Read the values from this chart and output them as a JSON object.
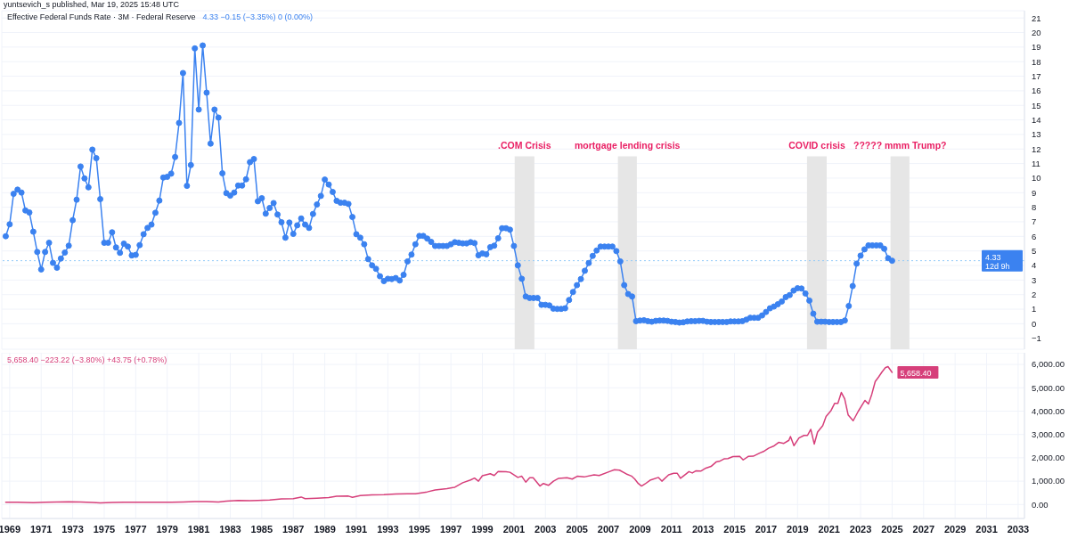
{
  "chart_data": [
    {
      "type": "line",
      "title": "Effective Federal Funds Rate · 3M · Federal Reserve",
      "subtitle": "4.33  −0.15 (−3.35%)  0 (0.00%)",
      "annotations": [
        "yuntsevich_s published, Mar 19, 2025 15:48 UTC"
      ],
      "x": [
        1968.75,
        1969,
        1969.25,
        1969.5,
        1969.75,
        1970,
        1970.25,
        1970.5,
        1970.75,
        1971,
        1971.25,
        1971.5,
        1971.75,
        1972,
        1972.25,
        1972.5,
        1972.75,
        1973,
        1973.25,
        1973.5,
        1973.75,
        1974,
        1974.25,
        1974.5,
        1974.75,
        1975,
        1975.25,
        1975.5,
        1975.75,
        1976,
        1976.25,
        1976.5,
        1976.75,
        1977,
        1977.25,
        1977.5,
        1977.75,
        1978,
        1978.25,
        1978.5,
        1978.75,
        1979,
        1979.25,
        1979.5,
        1979.75,
        1980,
        1980.25,
        1980.5,
        1980.75,
        1981,
        1981.25,
        1981.5,
        1981.75,
        1982,
        1982.25,
        1982.5,
        1982.75,
        1983,
        1983.25,
        1983.5,
        1983.75,
        1984,
        1984.25,
        1984.5,
        1984.75,
        1985,
        1985.25,
        1985.5,
        1985.75,
        1986,
        1986.25,
        1986.5,
        1986.75,
        1987,
        1987.25,
        1987.5,
        1987.75,
        1988,
        1988.25,
        1988.5,
        1988.75,
        1989,
        1989.25,
        1989.5,
        1989.75,
        1990,
        1990.25,
        1990.5,
        1990.75,
        1991,
        1991.25,
        1991.5,
        1991.75,
        1992,
        1992.25,
        1992.5,
        1992.75,
        1993,
        1993.25,
        1993.5,
        1993.75,
        1994,
        1994.25,
        1994.5,
        1994.75,
        1995,
        1995.25,
        1995.5,
        1995.75,
        1996,
        1996.25,
        1996.5,
        1996.75,
        1997,
        1997.25,
        1997.5,
        1997.75,
        1998,
        1998.25,
        1998.5,
        1998.75,
        1999,
        1999.25,
        1999.5,
        1999.75,
        2000,
        2000.25,
        2000.5,
        2000.75,
        2001,
        2001.25,
        2001.5,
        2001.75,
        2002,
        2002.25,
        2002.5,
        2002.75,
        2003,
        2003.25,
        2003.5,
        2003.75,
        2004,
        2004.25,
        2004.5,
        2004.75,
        2005,
        2005.25,
        2005.5,
        2005.75,
        2006,
        2006.25,
        2006.5,
        2006.75,
        2007,
        2007.25,
        2007.5,
        2007.75,
        2008,
        2008.25,
        2008.5,
        2008.75,
        2009,
        2009.25,
        2009.5,
        2009.75,
        2010,
        2010.25,
        2010.5,
        2010.75,
        2011,
        2011.25,
        2011.5,
        2011.75,
        2012,
        2012.25,
        2012.5,
        2012.75,
        2013,
        2013.25,
        2013.5,
        2013.75,
        2014,
        2014.25,
        2014.5,
        2014.75,
        2015,
        2015.25,
        2015.5,
        2015.75,
        2016,
        2016.25,
        2016.5,
        2016.75,
        2017,
        2017.25,
        2017.5,
        2017.75,
        2018,
        2018.25,
        2018.5,
        2018.75,
        2019,
        2019.25,
        2019.5,
        2019.75,
        2020,
        2020.25,
        2020.5,
        2020.75,
        2021,
        2021.25,
        2021.5,
        2021.75,
        2022,
        2022.25,
        2022.5,
        2022.75,
        2023,
        2023.25,
        2023.5,
        2023.75,
        2024,
        2024.25,
        2024.5,
        2024.75,
        2025
      ],
      "series": [
        {
          "color": "#3b82f0",
          "values": [
            6.01,
            6.83,
            8.92,
            9.21,
            9.01,
            7.78,
            7.64,
            6.32,
            4.93,
            3.73,
            4.93,
            5.56,
            4.18,
            3.85,
            4.48,
            4.89,
            5.36,
            7.11,
            8.52,
            10.8,
            9.98,
            9.37,
            11.96,
            11.37,
            8.56,
            5.56,
            5.56,
            6.28,
            5.24,
            4.87,
            5.5,
            5.3,
            4.69,
            4.73,
            5.4,
            6.15,
            6.58,
            6.81,
            7.62,
            8.46,
            10.04,
            10.09,
            10.31,
            11.45,
            13.79,
            17.22,
            9.47,
            10.9,
            18.91,
            14.71,
            19.11,
            15.87,
            12.37,
            14.71,
            14.16,
            10.33,
            8.97,
            8.8,
            9.01,
            9.49,
            9.49,
            9.92,
            11.1,
            11.31,
            8.41,
            8.62,
            7.56,
            7.95,
            8.29,
            7.5,
            6.97,
            5.91,
            6.95,
            6.17,
            6.76,
            7.23,
            6.81,
            6.58,
            7.54,
            8.19,
            8.78,
            9.9,
            9.56,
            9.05,
            8.44,
            8.31,
            8.31,
            8.23,
            7.33,
            6.15,
            5.91,
            5.46,
            4.44,
            4.01,
            3.77,
            3.26,
            2.93,
            3.09,
            3.07,
            3.14,
            2.97,
            3.36,
            4.28,
            4.75,
            5.46,
            6.03,
            6.03,
            5.85,
            5.62,
            5.34,
            5.34,
            5.34,
            5.34,
            5.46,
            5.6,
            5.56,
            5.52,
            5.52,
            5.6,
            5.54,
            4.7,
            4.83,
            4.77,
            5.26,
            5.36,
            5.87,
            6.56,
            6.56,
            6.46,
            5.34,
            4.01,
            3.09,
            1.87,
            1.77,
            1.77,
            1.77,
            1.3,
            1.3,
            1.26,
            1.04,
            1.02,
            1.02,
            1.06,
            1.63,
            2.18,
            2.65,
            3.07,
            3.64,
            4.17,
            4.66,
            5.03,
            5.3,
            5.3,
            5.3,
            5.3,
            4.99,
            4.28,
            2.65,
            2.04,
            1.87,
            0.18,
            0.22,
            0.24,
            0.18,
            0.14,
            0.2,
            0.22,
            0.22,
            0.2,
            0.14,
            0.12,
            0.08,
            0.1,
            0.16,
            0.18,
            0.18,
            0.2,
            0.2,
            0.14,
            0.12,
            0.12,
            0.12,
            0.12,
            0.12,
            0.16,
            0.16,
            0.16,
            0.18,
            0.28,
            0.41,
            0.41,
            0.41,
            0.57,
            0.81,
            1.06,
            1.18,
            1.34,
            1.53,
            1.83,
            1.97,
            2.28,
            2.44,
            2.42,
            2.08,
            1.59,
            0.69,
            0.14,
            0.14,
            0.14,
            0.12,
            0.12,
            0.12,
            0.12,
            0.22,
            1.22,
            2.59,
            4.13,
            4.68,
            5.11,
            5.38,
            5.38,
            5.38,
            5.38,
            5.15,
            4.5,
            4.33
          ]
        }
      ],
      "marker": "circle",
      "xlim": [
        1968.5,
        2033.4
      ],
      "xticks": [
        1969,
        1971,
        1973,
        1975,
        1977,
        1979,
        1981,
        1983,
        1985,
        1987,
        1989,
        1991,
        1993,
        1995,
        1997,
        1999,
        2001,
        2003,
        2005,
        2007,
        2009,
        2011,
        2013,
        2015,
        2017,
        2019,
        2021,
        2023,
        2025,
        2027,
        2029,
        2031,
        2033
      ],
      "ylim": [
        -1.75,
        21.5
      ],
      "yticks": [
        {
          "value": -1,
          "label": "−1"
        },
        0,
        1,
        2,
        3,
        4,
        5,
        6,
        7,
        8,
        9,
        10,
        11,
        12,
        13,
        14,
        15,
        16,
        17,
        18,
        19,
        20,
        21
      ],
      "ref_lines": [
        {
          "axis": "y",
          "value": 4.33,
          "label": "4.33\n12d 9h",
          "color": "#90caf9",
          "line_style": "dotted"
        }
      ],
      "bands": [
        {
          "axis": "x",
          "from": 2001.05,
          "to": 2002.3,
          "label": ".COM Crisis",
          "color": "#e6e6e6"
        },
        {
          "axis": "x",
          "from": 2007.6,
          "to": 2008.8,
          "label": "mortgage lending crisis",
          "color": "#e6e6e6"
        },
        {
          "axis": "x",
          "from": 2019.6,
          "to": 2020.85,
          "label": "COVID crisis",
          "color": "#e6e6e6"
        },
        {
          "axis": "x",
          "from": 2024.9,
          "to": 2026.1,
          "label": "????? mmm Trump?",
          "color": "#e6e6e6"
        }
      ],
      "grid": true,
      "tick_labels": "y"
    },
    {
      "type": "line",
      "subtitle": "5,658.40  −223.22 (−3.80%)  +43.75 (+0.78%)",
      "series": [
        {
          "color": "#d63f7a",
          "x": [
            1968.75,
            1969.5,
            1970.5,
            1971.25,
            1972,
            1972.75,
            1973.5,
            1974.25,
            1974.75,
            1975.5,
            1976.25,
            1977,
            1977.75,
            1978.5,
            1979.25,
            1980,
            1980.75,
            1981.5,
            1982.25,
            1982.75,
            1983.5,
            1984.25,
            1984.75,
            1985.5,
            1986.25,
            1987,
            1987.5,
            1987.75,
            1988.5,
            1989.25,
            1989.75,
            1990.5,
            1990.75,
            1991.25,
            1992,
            1992.75,
            1993.5,
            1994.25,
            1994.75,
            1995.5,
            1996,
            1996.75,
            1997.25,
            1997.75,
            1998.25,
            1998.5,
            1998.75,
            1999,
            1999.5,
            1999.75,
            2000,
            2000.5,
            2000.75,
            2001.25,
            2001.5,
            2001.75,
            2002,
            2002.22,
            2002.65,
            2002.87,
            2003.19,
            2003.51,
            2003.84,
            2004.37,
            2004.7,
            2005.02,
            2005.45,
            2006.09,
            2006.41,
            2007.06,
            2007.38,
            2007.7,
            2008.13,
            2008.46,
            2008.67,
            2008.89,
            2009.1,
            2009.32,
            2009.64,
            2010.17,
            2010.39,
            2010.82,
            2011.14,
            2011.36,
            2011.57,
            2011.79,
            2012.11,
            2012.32,
            2012.54,
            2012.86,
            2013.18,
            2013.51,
            2013.83,
            2014.04,
            2014.36,
            2014.58,
            2014.9,
            2015.33,
            2015.55,
            2015.87,
            2016.19,
            2016.62,
            2016.84,
            2017.16,
            2017.48,
            2017.8,
            2018.13,
            2018.45,
            2018.55,
            2018.77,
            2019.09,
            2019.41,
            2019.63,
            2019.84,
            2020.06,
            2020.27,
            2020.6,
            2020.81,
            2021.13,
            2021.35,
            2021.56,
            2021.78,
            2021.99,
            2022.21,
            2022.53,
            2022.85,
            2023.28,
            2023.5,
            2023.71,
            2023.93,
            2024.14,
            2024.36,
            2024.57,
            2024.74,
            2025
          ],
          "values": [
            100,
            100,
            80,
            100,
            110,
            120,
            110,
            90,
            70,
            90,
            100,
            100,
            100,
            100,
            100,
            110,
            130,
            130,
            110,
            140,
            170,
            160,
            170,
            190,
            240,
            250,
            320,
            250,
            270,
            300,
            350,
            360,
            310,
            380,
            410,
            420,
            450,
            460,
            460,
            540,
            620,
            680,
            740,
            930,
            1050,
            1130,
            1000,
            1230,
            1320,
            1240,
            1410,
            1400,
            1380,
            1160,
            1210,
            960,
            1150,
            1150,
            790,
            900,
            820,
            1000,
            1120,
            1150,
            1090,
            1210,
            1180,
            1270,
            1240,
            1410,
            1490,
            1470,
            1310,
            1220,
            1090,
            900,
            790,
            880,
            1040,
            1160,
            1000,
            1270,
            1340,
            1340,
            1120,
            1240,
            1410,
            1350,
            1440,
            1430,
            1560,
            1630,
            1820,
            1850,
            1960,
            1970,
            2050,
            2060,
            1910,
            2060,
            2070,
            2210,
            2270,
            2410,
            2500,
            2660,
            2620,
            2750,
            2910,
            2520,
            2850,
            2960,
            2960,
            3220,
            2590,
            3100,
            3380,
            3770,
            4030,
            4330,
            4330,
            4800,
            4530,
            3840,
            3590,
            3990,
            4460,
            4310,
            4720,
            5270,
            5460,
            5680,
            5860,
            5910,
            5658.4
          ],
          "value_labels": [
            null,
            null,
            null,
            null,
            null,
            null,
            null,
            null,
            null,
            null,
            null,
            null,
            null,
            null,
            null,
            null,
            null,
            null,
            null,
            null,
            null,
            null,
            null,
            null,
            null,
            null,
            null,
            null,
            null,
            null,
            null,
            null,
            null,
            null,
            null,
            null,
            null,
            null,
            null,
            null,
            null,
            null,
            null,
            null,
            null,
            null,
            null,
            null,
            null,
            null,
            null,
            null,
            null,
            null,
            null,
            null,
            null,
            null,
            null,
            null,
            null,
            null,
            null,
            null,
            null,
            null,
            null,
            null,
            null,
            null,
            null,
            null,
            null,
            null,
            null,
            null,
            null,
            null,
            null,
            null,
            null,
            null,
            null,
            null,
            null,
            null,
            null,
            null,
            null,
            null,
            null,
            null,
            null,
            null,
            null,
            null,
            null,
            null,
            null,
            null,
            null,
            null,
            null,
            null,
            null,
            null,
            null,
            null,
            null,
            null,
            null,
            null,
            null,
            null,
            null,
            null,
            null,
            null,
            null,
            null,
            null,
            null,
            null,
            null,
            null,
            null,
            null,
            null,
            null,
            null,
            null,
            null,
            null,
            null,
            "5,658.40"
          ]
        }
      ],
      "xlim": [
        1968.5,
        2033.4
      ],
      "xticks": [
        1969,
        1971,
        1973,
        1975,
        1977,
        1979,
        1981,
        1983,
        1985,
        1987,
        1989,
        1991,
        1993,
        1995,
        1997,
        1999,
        2001,
        2003,
        2005,
        2007,
        2009,
        2011,
        2013,
        2015,
        2017,
        2019,
        2021,
        2023,
        2025,
        2027,
        2029,
        2031,
        2033
      ],
      "ylim": [
        -600,
        6500
      ],
      "yticks": [
        {
          "value": 0,
          "label": "0.00"
        },
        {
          "value": 1000,
          "label": "1,000.00"
        },
        {
          "value": 2000,
          "label": "2,000.00"
        },
        {
          "value": 3000,
          "label": "3,000.00"
        },
        {
          "value": 4000,
          "label": "4,000.00"
        },
        {
          "value": 5000,
          "label": "5,000.00"
        },
        {
          "value": 6000,
          "label": "6,000.00"
        }
      ],
      "grid": true
    }
  ]
}
